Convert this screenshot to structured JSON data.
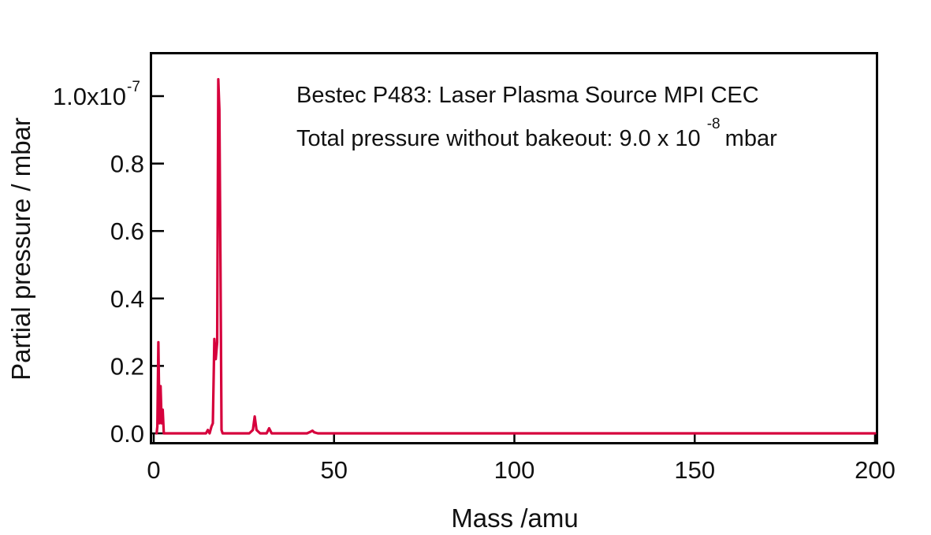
{
  "chart_data": {
    "type": "line",
    "title": "",
    "xlabel": "Mass /amu",
    "ylabel": "Partial pressure / mbar",
    "xlim": [
      0,
      200
    ],
    "ylim": [
      -0.03,
      1.13
    ],
    "y_scale_exponent": -7,
    "x_ticks": [
      0,
      50,
      100,
      150,
      200
    ],
    "x_tick_labels": [
      "0",
      "50",
      "100",
      "150",
      "200"
    ],
    "y_ticks": [
      0.0,
      0.2,
      0.4,
      0.6,
      0.8,
      1.0
    ],
    "y_tick_labels": [
      "0.0",
      "0.2",
      "0.4",
      "0.6",
      "0.8",
      "1.0x10"
    ],
    "y_top_label_exponent": "-7",
    "grid": false,
    "legend": null,
    "annotations": [
      {
        "text": "Bestec P483: Laser Plasma Source MPI CEC"
      },
      {
        "text": "Total pressure without bakeout: 9.0 x 10",
        "superscript": "-8",
        "suffix": "mbar"
      }
    ],
    "line_color": "#D6003C",
    "series": [
      {
        "name": "Partial pressure",
        "units": "x1e-7 mbar",
        "x": [
          0.8,
          1.0,
          1.3,
          1.6,
          1.9,
          2.2,
          2.5,
          2.8,
          3.1,
          3.4,
          4.0,
          10.0,
          14.5,
          15.0,
          15.5,
          16.0,
          16.4,
          16.8,
          17.2,
          17.6,
          17.9,
          18.2,
          18.5,
          18.8,
          19.1,
          19.5,
          20.0,
          26.5,
          27.5,
          28.0,
          28.5,
          29.5,
          31.3,
          32.0,
          32.7,
          42.5,
          43.5,
          44.0,
          44.5,
          45.5,
          60,
          100,
          150,
          200
        ],
        "y": [
          0.0,
          0.02,
          0.27,
          0.03,
          0.14,
          0.03,
          0.07,
          0.0,
          0.0,
          0.0,
          0.0,
          0.0,
          0.0,
          0.01,
          0.0,
          0.02,
          0.03,
          0.28,
          0.22,
          0.27,
          1.05,
          0.96,
          0.53,
          0.01,
          0.0,
          0.0,
          0.0,
          0.0,
          0.01,
          0.05,
          0.01,
          0.0,
          0.0,
          0.015,
          0.0,
          0.0,
          0.005,
          0.008,
          0.003,
          0.0,
          0.0,
          0.0,
          0.0,
          0.0
        ]
      }
    ],
    "peaks_approx": [
      {
        "mass": 1.3,
        "value": 0.27
      },
      {
        "mass": 1.9,
        "value": 0.14
      },
      {
        "mass": 17.2,
        "value": 0.28
      },
      {
        "mass": 18.0,
        "value": 1.05
      },
      {
        "mass": 28.0,
        "value": 0.05
      },
      {
        "mass": 32.0,
        "value": 0.015
      },
      {
        "mass": 44.0,
        "value": 0.008
      }
    ]
  }
}
